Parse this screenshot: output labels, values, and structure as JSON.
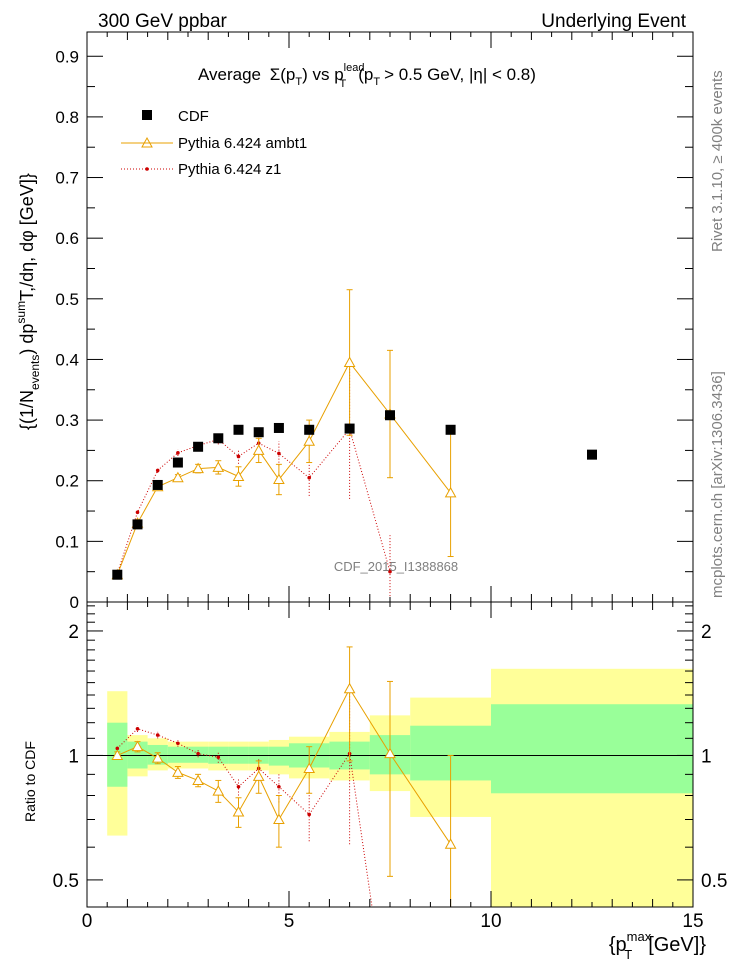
{
  "header": {
    "left": "300 GeV ppbar",
    "right": "Underlying Event"
  },
  "side_labels": {
    "rivet": "Rivet 3.1.10, ≥ 400k events",
    "mcplots": "mcplots.cern.ch [arXiv:1306.3436]"
  },
  "chart_data": [
    {
      "type": "scatter",
      "title": {
        "text": "Average",
        "sigma": "Σ(p",
        "sigma_sub": "T",
        "vs": ") vs p",
        "lead_sup": "lead",
        "lead_sub": "T",
        "cuts_open": "(p",
        "cuts_sub": "T",
        "cuts_rest": "> 0.5 GeV, |η| < 0.8)"
      },
      "ylabel": {
        "a": "{(1/N",
        "a_sub": "events",
        "b": ") dp",
        "b_sup": "sum",
        "c": "T",
        "d": ",/dη, dφ [GeV]}"
      },
      "watermark": "CDF_2015_I1388868",
      "xlim": [
        0,
        15
      ],
      "ylim": [
        0,
        0.94
      ],
      "yticks": [
        "0",
        "0.1",
        "0.2",
        "0.3",
        "0.4",
        "0.5",
        "0.6",
        "0.7",
        "0.8",
        "0.9"
      ],
      "legend": [
        "CDF",
        "Pythia 6.424 ambt1",
        "Pythia 6.424 z1"
      ],
      "series": [
        {
          "name": "CDF",
          "color": "#000000",
          "x": [
            0.75,
            1.25,
            1.75,
            2.25,
            2.75,
            3.25,
            3.75,
            4.25,
            4.75,
            5.5,
            6.5,
            7.5,
            9.0,
            12.5
          ],
          "y": [
            0.045,
            0.128,
            0.193,
            0.23,
            0.256,
            0.27,
            0.284,
            0.28,
            0.287,
            0.284,
            0.286,
            0.308,
            0.284,
            0.243
          ]
        },
        {
          "name": "Pythia 6.424 ambt1",
          "color": "#e8a000",
          "x": [
            0.75,
            1.25,
            1.75,
            2.25,
            2.75,
            3.25,
            3.75,
            4.25,
            4.75,
            5.5,
            6.5,
            7.5,
            9.0
          ],
          "y": [
            0.045,
            0.13,
            0.19,
            0.205,
            0.22,
            0.222,
            0.207,
            0.25,
            0.202,
            0.265,
            0.395,
            0.31,
            0.18
          ],
          "err": [
            0.002,
            0.004,
            0.005,
            0.005,
            0.007,
            0.011,
            0.016,
            0.02,
            0.025,
            0.035,
            0.12,
            0.105,
            0.105
          ]
        },
        {
          "name": "Pythia 6.424 z1",
          "color": "#cc0000",
          "x": [
            0.75,
            1.25,
            1.75,
            2.25,
            2.75,
            3.25,
            3.75,
            4.25,
            4.75,
            5.5,
            6.5,
            7.5
          ],
          "y": [
            0.047,
            0.148,
            0.217,
            0.246,
            0.258,
            0.268,
            0.24,
            0.262,
            0.245,
            0.205,
            0.285,
            0.05
          ],
          "err": [
            0.002,
            0.003,
            0.004,
            0.005,
            0.006,
            0.008,
            0.012,
            0.015,
            0.02,
            0.03,
            0.115,
            0.06
          ]
        }
      ]
    },
    {
      "type": "scatter",
      "ylabel": "Ratio to CDF",
      "xlabel": {
        "open": "{p",
        "sup": "max",
        "sub": "T",
        "rest": "[GeV]}"
      },
      "xlim": [
        0,
        15
      ],
      "xticks": [
        "0",
        "5",
        "10",
        "15"
      ],
      "ylim": [
        0.43,
        2.35
      ],
      "yticks": [
        "0.5",
        "1",
        "2"
      ],
      "bands": {
        "edges": [
          0.5,
          1.0,
          1.5,
          2.0,
          2.5,
          3.0,
          3.5,
          4.0,
          4.5,
          5.0,
          6.0,
          7.0,
          8.0,
          10.0,
          15.0
        ],
        "green_lo": [
          0.84,
          0.93,
          0.95,
          0.96,
          0.96,
          0.955,
          0.955,
          0.955,
          0.945,
          0.935,
          0.925,
          0.9,
          0.87,
          0.81
        ],
        "green_hi": [
          1.2,
          1.08,
          1.06,
          1.05,
          1.05,
          1.05,
          1.05,
          1.05,
          1.05,
          1.07,
          1.08,
          1.12,
          1.18,
          1.33
        ],
        "yellow_lo": [
          0.64,
          0.89,
          0.92,
          0.93,
          0.93,
          0.92,
          0.92,
          0.92,
          0.9,
          0.88,
          0.87,
          0.82,
          0.71,
          0.42
        ],
        "yellow_hi": [
          1.43,
          1.12,
          1.1,
          1.08,
          1.08,
          1.08,
          1.08,
          1.08,
          1.09,
          1.11,
          1.14,
          1.25,
          1.38,
          1.62
        ],
        "green_color": "#99ff99",
        "yellow_color": "#ffff99"
      },
      "series": [
        {
          "name": "Pythia 6.424 ambt1",
          "color": "#e8a000",
          "x": [
            0.75,
            1.25,
            1.75,
            2.25,
            2.75,
            3.25,
            3.75,
            4.25,
            4.75,
            5.5,
            6.5,
            7.5,
            9.0
          ],
          "y": [
            1.0,
            1.05,
            0.985,
            0.91,
            0.87,
            0.82,
            0.73,
            0.89,
            0.7,
            0.93,
            1.45,
            1.01,
            0.61
          ],
          "err_lo": [
            0.02,
            0.03,
            0.03,
            0.03,
            0.03,
            0.05,
            0.06,
            0.08,
            0.1,
            0.12,
            0.48,
            0.5,
            0.5
          ],
          "err_hi": [
            0.02,
            0.03,
            0.03,
            0.03,
            0.03,
            0.05,
            0.06,
            0.08,
            0.1,
            0.12,
            0.38,
            0.5,
            0.39
          ]
        },
        {
          "name": "Pythia 6.424 z1",
          "color": "#cc0000",
          "x": [
            0.75,
            1.25,
            1.75,
            2.25,
            2.75,
            3.25,
            3.75,
            4.25,
            4.75,
            5.5,
            6.5
          ],
          "y": [
            1.04,
            1.16,
            1.12,
            1.07,
            1.01,
            0.99,
            0.84,
            0.93,
            0.84,
            0.72,
            1.01
          ],
          "err_lo": [
            0.01,
            0.02,
            0.02,
            0.02,
            0.02,
            0.03,
            0.04,
            0.05,
            0.07,
            0.1,
            0.4
          ],
          "err_hi": [
            0.01,
            0.02,
            0.02,
            0.02,
            0.02,
            0.03,
            0.04,
            0.05,
            0.07,
            0.1,
            0.4
          ]
        }
      ]
    }
  ]
}
